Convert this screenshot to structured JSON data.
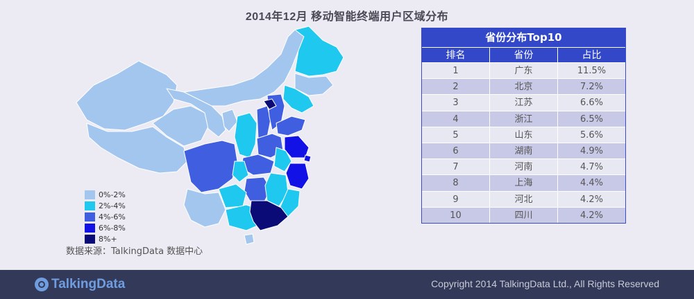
{
  "title": "2014年12月 移动智能终端用户区域分布",
  "legend": [
    {
      "label": "0%-2%",
      "color": "#a3c6ef"
    },
    {
      "label": "2%-4%",
      "color": "#1ec8ee"
    },
    {
      "label": "4%-6%",
      "color": "#3f5fe0"
    },
    {
      "label": "6%-8%",
      "color": "#1212e6"
    },
    {
      "label": "8%+",
      "color": "#0b0b78"
    }
  ],
  "source": "数据来源：TalkingData 数据中心",
  "table": {
    "title": "省份分布Top10",
    "headers": [
      "排名",
      "省份",
      "占比"
    ]
  },
  "chart_data": {
    "type": "table",
    "title": "省份分布Top10",
    "columns": [
      "排名",
      "省份",
      "占比"
    ],
    "rows": [
      [
        "1",
        "广东",
        "11.5%"
      ],
      [
        "2",
        "北京",
        "7.2%"
      ],
      [
        "3",
        "江苏",
        "6.6%"
      ],
      [
        "4",
        "浙江",
        "6.5%"
      ],
      [
        "5",
        "山东",
        "5.6%"
      ],
      [
        "6",
        "湖南",
        "4.9%"
      ],
      [
        "7",
        "河南",
        "4.7%"
      ],
      [
        "8",
        "上海",
        "4.4%"
      ],
      [
        "9",
        "河北",
        "4.2%"
      ],
      [
        "10",
        "四川",
        "4.2%"
      ]
    ]
  },
  "footer": {
    "logo_text": "TalkingData",
    "copyright": "Copyright 2014 TalkingData Ltd., All Rights Reserved"
  }
}
